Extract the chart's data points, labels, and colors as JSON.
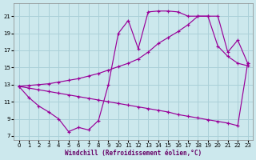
{
  "xlabel": "Windchill (Refroidissement éolien,°C)",
  "bg_color": "#cce8ed",
  "grid_color": "#aad0d8",
  "line_color": "#990099",
  "xlim": [
    -0.5,
    23.5
  ],
  "ylim": [
    6.5,
    22.5
  ],
  "xticks": [
    0,
    1,
    2,
    3,
    4,
    5,
    6,
    7,
    8,
    9,
    10,
    11,
    12,
    13,
    14,
    15,
    16,
    17,
    18,
    19,
    20,
    21,
    22,
    23
  ],
  "yticks": [
    7,
    9,
    11,
    13,
    15,
    17,
    19,
    21
  ],
  "line1_x": [
    0,
    1,
    2,
    3,
    4,
    5,
    6,
    7,
    8,
    9,
    10,
    11,
    12,
    13,
    14,
    15,
    16,
    17,
    18,
    19,
    20,
    21,
    22,
    23
  ],
  "line1_y": [
    12.8,
    11.5,
    10.5,
    9.8,
    9.0,
    7.5,
    8.0,
    7.7,
    8.8,
    13.0,
    19.0,
    20.5,
    17.2,
    21.5,
    21.6,
    21.6,
    21.5,
    21.0,
    21.0,
    21.0,
    17.5,
    16.3,
    15.5,
    15.2
  ],
  "line2_x": [
    0,
    1,
    2,
    3,
    4,
    5,
    6,
    7,
    8,
    9,
    10,
    11,
    12,
    13,
    14,
    15,
    16,
    17,
    18,
    19,
    20,
    21,
    22,
    23
  ],
  "line2_y": [
    12.8,
    12.9,
    13.0,
    13.1,
    13.3,
    13.5,
    13.7,
    14.0,
    14.3,
    14.7,
    15.1,
    15.5,
    16.0,
    16.8,
    17.8,
    18.5,
    19.2,
    20.0,
    21.0,
    21.0,
    21.0,
    16.8,
    18.2,
    15.5
  ],
  "line3_x": [
    0,
    1,
    2,
    3,
    4,
    5,
    6,
    7,
    8,
    9,
    10,
    11,
    12,
    13,
    14,
    15,
    16,
    17,
    18,
    19,
    20,
    21,
    22,
    23
  ],
  "line3_y": [
    12.8,
    12.6,
    12.4,
    12.2,
    12.0,
    11.8,
    11.6,
    11.4,
    11.2,
    11.0,
    10.8,
    10.6,
    10.4,
    10.2,
    10.0,
    9.8,
    9.5,
    9.3,
    9.1,
    8.9,
    8.7,
    8.5,
    8.2,
    15.5
  ]
}
